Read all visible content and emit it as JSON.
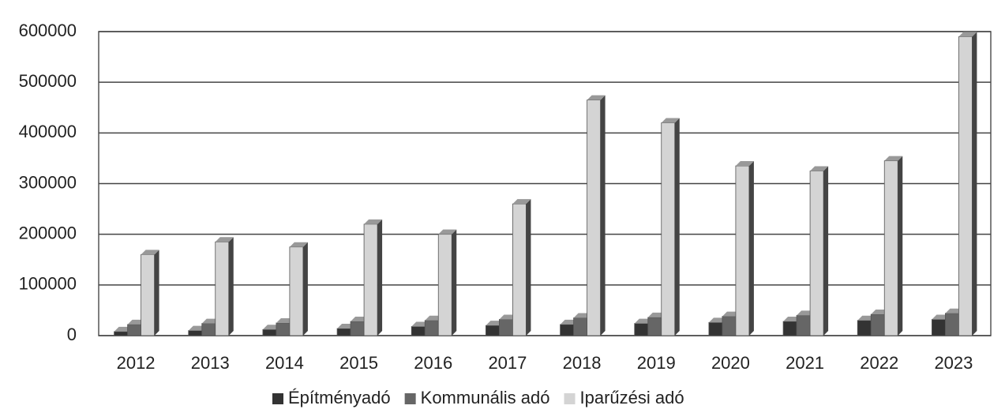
{
  "chart_data": {
    "type": "bar",
    "categories": [
      "2012",
      "2013",
      "2014",
      "2015",
      "2016",
      "2017",
      "2018",
      "2019",
      "2020",
      "2021",
      "2022",
      "2023"
    ],
    "series": [
      {
        "name": "Építményadó",
        "color": "#333333",
        "values": [
          8000,
          10000,
          12000,
          14000,
          18000,
          20000,
          22000,
          24000,
          26000,
          28000,
          30000,
          32000
        ]
      },
      {
        "name": "Kommunális adó",
        "color": "#666666",
        "values": [
          22000,
          24000,
          25000,
          28000,
          30000,
          32000,
          35000,
          36000,
          38000,
          40000,
          42000,
          44000
        ]
      },
      {
        "name": "Iparűzési adó",
        "color": "#d4d4d4",
        "values": [
          160000,
          185000,
          175000,
          220000,
          200000,
          260000,
          465000,
          420000,
          335000,
          325000,
          345000,
          590000
        ]
      }
    ],
    "ylim": [
      0,
      600000
    ],
    "yticks": [
      0,
      100000,
      200000,
      300000,
      400000,
      500000,
      600000
    ],
    "grid": true,
    "legend": "bottom"
  }
}
